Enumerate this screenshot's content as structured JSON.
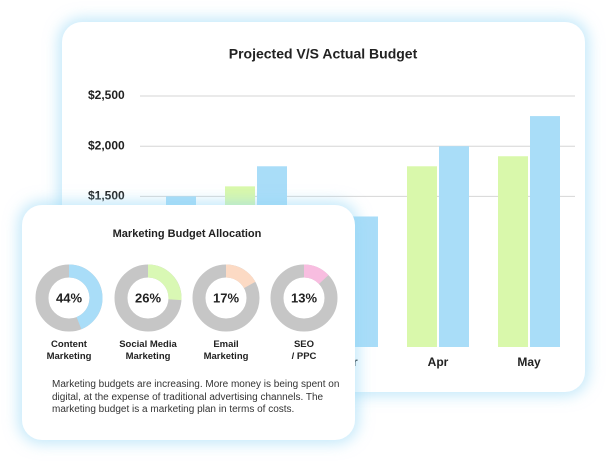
{
  "chart_data": [
    {
      "type": "bar",
      "title": "Projected V/S Actual Budget",
      "categories": [
        null,
        null,
        "Mar",
        "Apr",
        "May"
      ],
      "series": [
        {
          "color": "#d9f8ab",
          "values": [
            null,
            1600,
            null,
            1800,
            1900
          ]
        },
        {
          "color": "#a9ddf8",
          "values": [
            1500,
            1800,
            1300,
            2000,
            2300
          ]
        }
      ],
      "ylim": [
        0,
        2500
      ],
      "yticks": [
        {
          "value": 1500,
          "label": "$1,500"
        },
        {
          "value": 2000,
          "label": "$2,000"
        },
        {
          "value": 2500,
          "label": "$2,500"
        }
      ],
      "grid": true
    },
    {
      "type": "donut",
      "title": "Marketing Budget Allocation",
      "categories": [
        "Content\nMarketing",
        "Social Media\nMarketing",
        "Email\nMarketing",
        "SEO\n/ PPC"
      ],
      "values": [
        44,
        26,
        17,
        13
      ],
      "value_labels": [
        "44%",
        "26%",
        "17%",
        "13%"
      ],
      "colors": [
        "#a9ddf8",
        "#d9f8b4",
        "#fcdac4",
        "#f8bde0"
      ],
      "annotation": "Marketing budgets are increasing. More money is being spent on digital, at the expense of traditional advertising channels. The marketing budget is a marketing plan in terms of costs."
    }
  ]
}
